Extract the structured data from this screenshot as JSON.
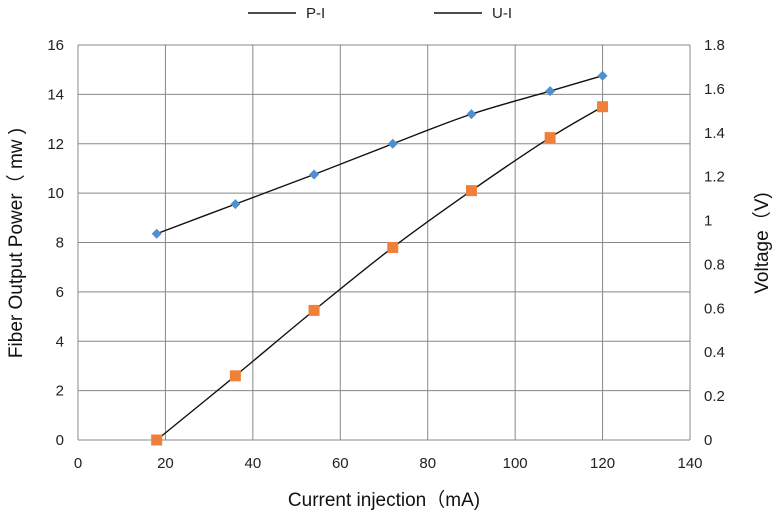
{
  "chart_data": {
    "type": "line",
    "xlabel": "Current injection（mA)",
    "ylabel_left": "Fiber Output Power（ mw )",
    "ylabel_right": "Voltage（V)",
    "xlim": [
      0,
      140
    ],
    "ylim_left": [
      0,
      16
    ],
    "ylim_right": [
      0,
      1.8
    ],
    "x_ticks": [
      "0",
      "20",
      "40",
      "60",
      "80",
      "100",
      "120",
      "140"
    ],
    "y_left_ticks": [
      "0",
      "2",
      "4",
      "6",
      "8",
      "10",
      "12",
      "14",
      "16"
    ],
    "y_right_ticks": [
      "0",
      "0.2",
      "0.4",
      "0.6",
      "0.8",
      "1",
      "1.2",
      "1.4",
      "1.6",
      "1.8"
    ],
    "grid": true,
    "legend_position": "top",
    "series": [
      {
        "name": "P-I",
        "axis": "right",
        "marker": "diamond",
        "marker_color": "#4f8fcf",
        "x": [
          18,
          36,
          54,
          72,
          90,
          108,
          120
        ],
        "y": [
          0.94,
          1.075,
          1.21,
          1.35,
          1.485,
          1.59,
          1.66
        ]
      },
      {
        "name": "U-I",
        "axis": "left",
        "marker": "square",
        "marker_color": "#f07f3a",
        "x": [
          18,
          36,
          54,
          72,
          90,
          108,
          120
        ],
        "y": [
          0.0,
          2.6,
          5.25,
          7.8,
          10.1,
          12.25,
          13.5
        ]
      }
    ]
  }
}
